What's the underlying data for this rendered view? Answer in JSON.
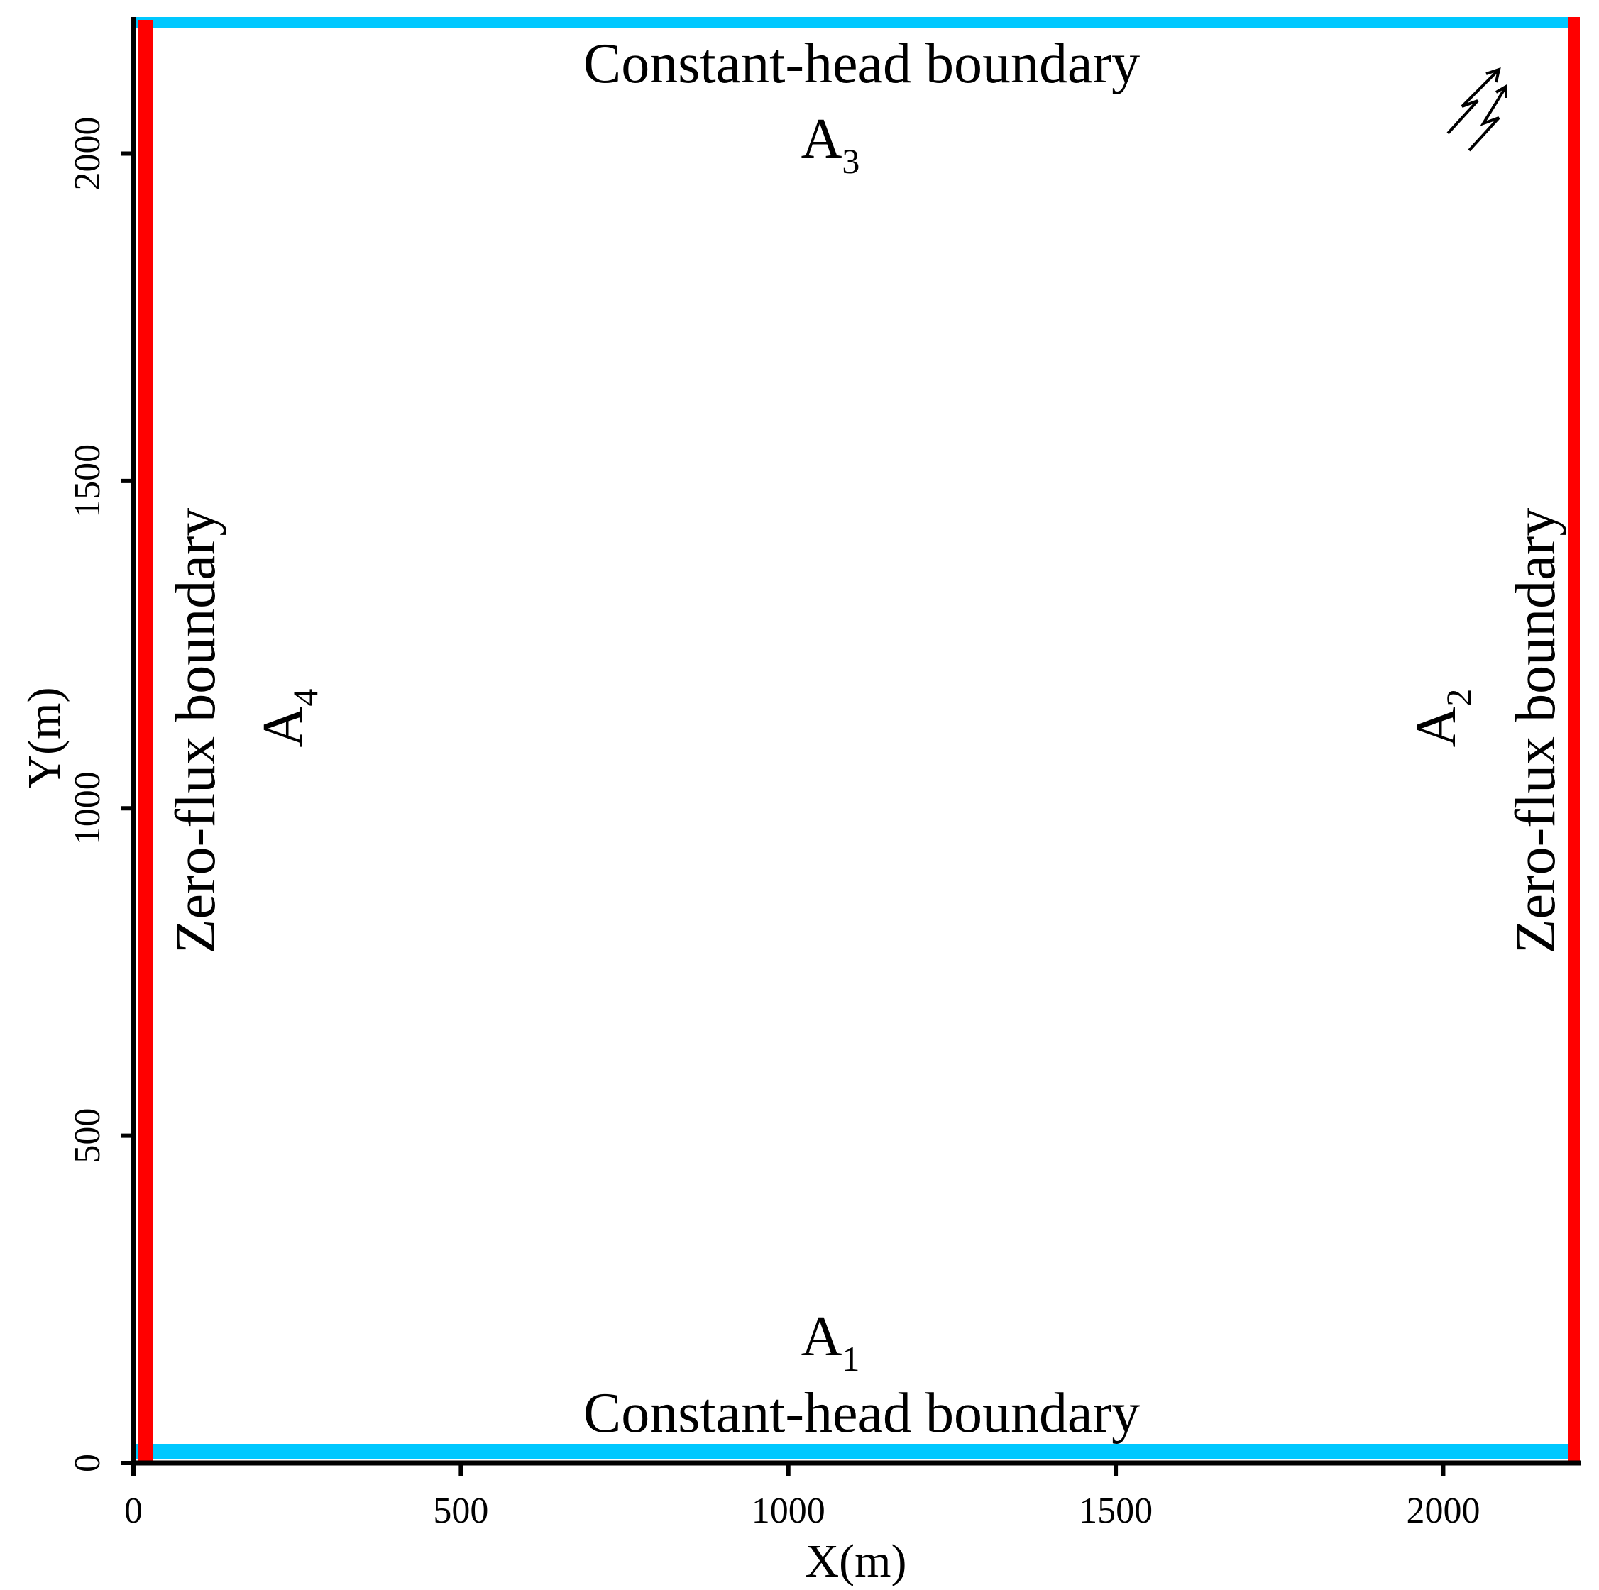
{
  "axes": {
    "xlabel": "X(m)",
    "ylabel": "Y(m)",
    "xlim": [
      0,
      2200
    ],
    "ylim": [
      0,
      2200
    ],
    "xticks": [
      {
        "value": 0,
        "label": "0"
      },
      {
        "value": 500,
        "label": "500"
      },
      {
        "value": 1000,
        "label": "1000"
      },
      {
        "value": 1500,
        "label": "1500"
      },
      {
        "value": 2000,
        "label": "2000"
      }
    ],
    "yticks": [
      {
        "value": 0,
        "label": "0"
      },
      {
        "value": 500,
        "label": "500"
      },
      {
        "value": 1000,
        "label": "1000"
      },
      {
        "value": 1500,
        "label": "1500"
      },
      {
        "value": 2000,
        "label": "2000"
      }
    ],
    "axis_color": "#000000"
  },
  "boundaries": {
    "top": {
      "label": "Constant-head boundary",
      "color": "#00c8ff"
    },
    "bottom": {
      "label": "Constant-head boundary",
      "color": "#00c8ff"
    },
    "left": {
      "label": "Zero-flux boundary",
      "color": "#ff0000"
    },
    "right": {
      "label": "Zero-flux boundary",
      "color": "#ff0000"
    }
  },
  "boundary_ids": {
    "bottom": {
      "letter": "A",
      "sub": "1"
    },
    "right": {
      "letter": "A",
      "sub": "2"
    },
    "top": {
      "letter": "A",
      "sub": "3"
    },
    "left": {
      "letter": "A",
      "sub": "4"
    }
  },
  "icons": {
    "corner_symbol": "double-arrow-zigzag-icon"
  }
}
